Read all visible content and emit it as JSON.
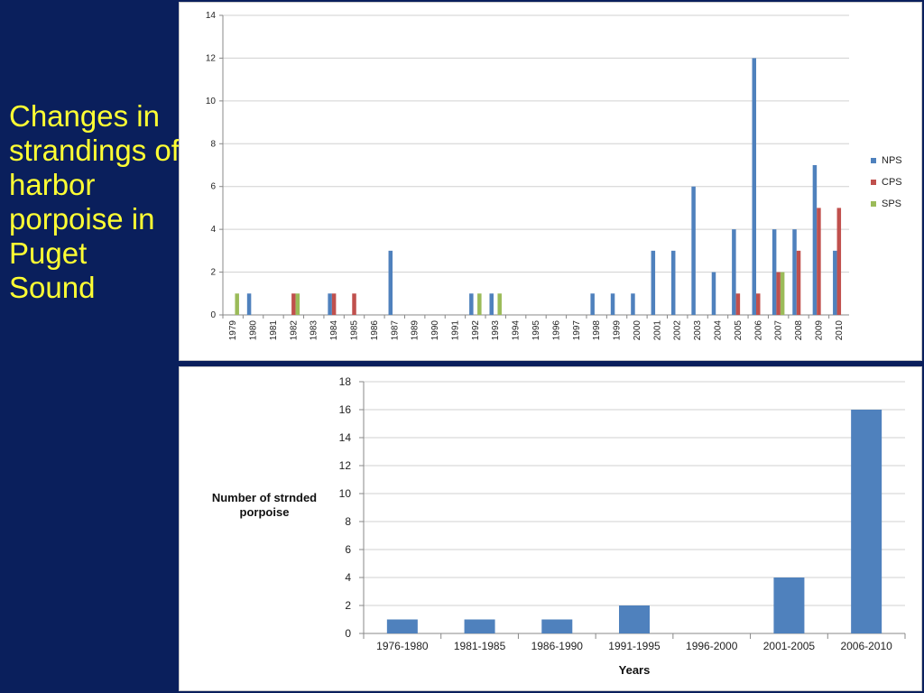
{
  "slide": {
    "title": "Changes in strandings of harbor porpoise in Puget Sound"
  },
  "colors": {
    "background": "#0a1f5c",
    "title": "#ffff33",
    "nps": "#4f81bd",
    "cps": "#c0504d",
    "sps": "#9bbb59"
  },
  "chart_data": [
    {
      "type": "bar",
      "categories": [
        "1979",
        "1980",
        "1981",
        "1982",
        "1983",
        "1984",
        "1985",
        "1986",
        "1987",
        "1989",
        "1990",
        "1991",
        "1992",
        "1993",
        "1994",
        "1995",
        "1996",
        "1997",
        "1998",
        "1999",
        "2000",
        "2001",
        "2002",
        "2003",
        "2004",
        "2005",
        "2006",
        "2007",
        "2008",
        "2009",
        "2010"
      ],
      "series": [
        {
          "name": "NPS",
          "values": [
            0,
            1,
            0,
            0,
            0,
            1,
            0,
            0,
            3,
            0,
            0,
            0,
            1,
            1,
            0,
            0,
            0,
            0,
            1,
            1,
            1,
            3,
            3,
            6,
            2,
            4,
            12,
            4,
            4,
            7,
            3
          ]
        },
        {
          "name": "CPS",
          "values": [
            0,
            0,
            0,
            1,
            0,
            1,
            1,
            0,
            0,
            0,
            0,
            0,
            0,
            0,
            0,
            0,
            0,
            0,
            0,
            0,
            0,
            0,
            0,
            0,
            0,
            1,
            1,
            2,
            3,
            5,
            5
          ]
        },
        {
          "name": "SPS",
          "values": [
            1,
            0,
            0,
            1,
            0,
            0,
            0,
            0,
            0,
            0,
            0,
            0,
            1,
            1,
            0,
            0,
            0,
            0,
            0,
            0,
            0,
            0,
            0,
            0,
            0,
            0,
            0,
            2,
            0,
            0,
            0
          ]
        }
      ],
      "ylim": [
        0,
        14
      ],
      "yticks": [
        "0",
        "2",
        "4",
        "6",
        "8",
        "10",
        "12",
        "14"
      ],
      "grid": true,
      "legend": "right"
    },
    {
      "type": "bar",
      "categories": [
        "1976-1980",
        "1981-1985",
        "1986-1990",
        "1991-1995",
        "1996-2000",
        "2001-2005",
        "2006-2010"
      ],
      "values": [
        1,
        1,
        1,
        2,
        0,
        4,
        16
      ],
      "ylim": [
        0,
        18
      ],
      "yticks": [
        "0",
        "2",
        "4",
        "6",
        "8",
        "10",
        "12",
        "14",
        "16",
        "18"
      ],
      "xlabel": "Years",
      "ylabel": "Number of strnded porpoise",
      "grid": true
    }
  ]
}
